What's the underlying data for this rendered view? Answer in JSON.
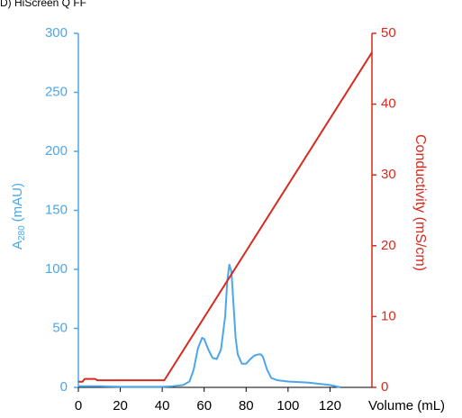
{
  "chart_data": {
    "type": "line",
    "title": "D) HiScreen Q FF",
    "x_label": "Volume (mL)",
    "y_label": "A",
    "y_label_sub": "280",
    "y_label_unit": "(mAU)",
    "y2_label": "Conductivity (mS/cm)",
    "xlim": [
      0,
      140
    ],
    "xticks": [
      0,
      20,
      40,
      60,
      80,
      100,
      120
    ],
    "ylim": [
      0,
      300
    ],
    "yticks": [
      0,
      50,
      100,
      150,
      200,
      250,
      300
    ],
    "y2lim": [
      0,
      50
    ],
    "y2ticks": [
      0,
      10,
      20,
      30,
      40,
      50
    ],
    "y_color": "#4da6e8",
    "y2_color": "#d62b1f",
    "series": [
      {
        "color": "#4da6e8",
        "x": [
          0,
          10,
          20,
          30,
          40,
          45,
          50,
          53,
          55,
          57,
          59,
          60,
          62,
          64,
          66,
          68,
          70,
          71,
          72,
          73,
          74,
          75,
          76,
          78,
          80,
          82,
          84,
          86,
          87,
          88,
          90,
          92,
          95,
          100,
          105,
          110,
          115,
          120,
          125
        ],
        "values": [
          1,
          1,
          0.5,
          0.5,
          0.5,
          1,
          2,
          5,
          15,
          33,
          42,
          41,
          32,
          25,
          24,
          32,
          60,
          90,
          104,
          98,
          70,
          42,
          28,
          20,
          20,
          24,
          27,
          28,
          28,
          26,
          15,
          8,
          6,
          5,
          4.5,
          4,
          3,
          2,
          0
        ]
      },
      {
        "color": "#d62b1f",
        "axis": "y2",
        "x": [
          0,
          2,
          3,
          8,
          9,
          41,
          140
        ],
        "values": [
          0.8,
          0.8,
          1.2,
          1.2,
          1,
          1,
          47.3
        ]
      }
    ]
  }
}
